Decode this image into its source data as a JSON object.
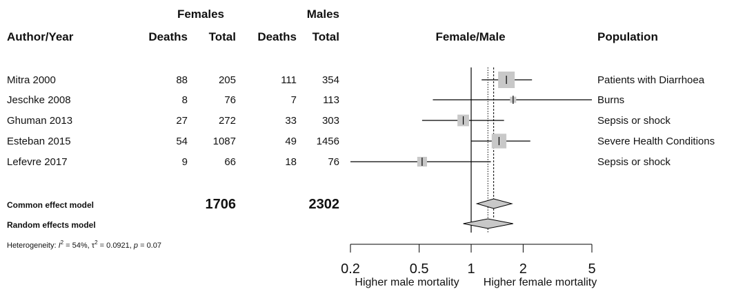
{
  "header": {
    "author_year": "Author/Year",
    "females": "Females",
    "males": "Males",
    "deaths": "Deaths",
    "total": "Total",
    "effect_label": "Female/Male",
    "population": "Population"
  },
  "studies": [
    {
      "author": "Mitra 2000",
      "f_deaths": "88",
      "f_total": "205",
      "m_deaths": "111",
      "m_total": "354",
      "population": "Patients with Diarrhoea"
    },
    {
      "author": "Jeschke 2008",
      "f_deaths": "8",
      "f_total": "76",
      "m_deaths": "7",
      "m_total": "113",
      "population": "Burns"
    },
    {
      "author": "Ghuman 2013",
      "f_deaths": "27",
      "f_total": "272",
      "m_deaths": "33",
      "m_total": "303",
      "population": "Sepsis or shock"
    },
    {
      "author": "Esteban 2015",
      "f_deaths": "54",
      "f_total": "1087",
      "m_deaths": "49",
      "m_total": "1456",
      "population": "Severe Health Conditions"
    },
    {
      "author": "Lefevre 2017",
      "f_deaths": "9",
      "f_total": "66",
      "m_deaths": "18",
      "m_total": "76",
      "population": "Sepsis or shock"
    }
  ],
  "summary": {
    "common_label": "Common effect model",
    "random_label": "Random effects model",
    "female_total": "1706",
    "male_total": "2302",
    "het_prefix": "Heterogeneity: ",
    "het_i": "I",
    "het_i_val": " = 54%, ",
    "het_tau": "τ",
    "het_tau_val": " = 0.0921, ",
    "het_p": "p",
    "het_p_val": " = 0.07",
    "sup2": "2"
  },
  "chart_data": {
    "type": "forest",
    "scale": "log",
    "xlim": [
      0.2,
      5
    ],
    "ticks": [
      0.2,
      0.5,
      1,
      2,
      5
    ],
    "tick_labels": [
      "0.2",
      "0.5",
      "1",
      "2",
      "5"
    ],
    "left_direction": "Higher male mortality",
    "right_direction": "Higher female mortality",
    "reference_line": 1,
    "common_line": 1.35,
    "random_line": 1.25,
    "colors": {
      "box": "#c8c8c8",
      "diamond": "#c8c8c8",
      "line": "#000000"
    },
    "studies": [
      {
        "estimate": 1.6,
        "lower": 1.15,
        "upper": 2.25,
        "weight": 1.0
      },
      {
        "estimate": 1.75,
        "lower": 0.6,
        "upper": 5.1,
        "weight": 0.16
      },
      {
        "estimate": 0.9,
        "lower": 0.52,
        "upper": 1.55,
        "weight": 0.6
      },
      {
        "estimate": 1.45,
        "lower": 1.0,
        "upper": 2.2,
        "weight": 0.85
      },
      {
        "estimate": 0.52,
        "lower": 0.2,
        "upper": 1.3,
        "weight": 0.45
      }
    ],
    "common": {
      "estimate": 1.35,
      "lower": 1.08,
      "upper": 1.72
    },
    "random": {
      "estimate": 1.25,
      "lower": 0.9,
      "upper": 1.75
    }
  }
}
